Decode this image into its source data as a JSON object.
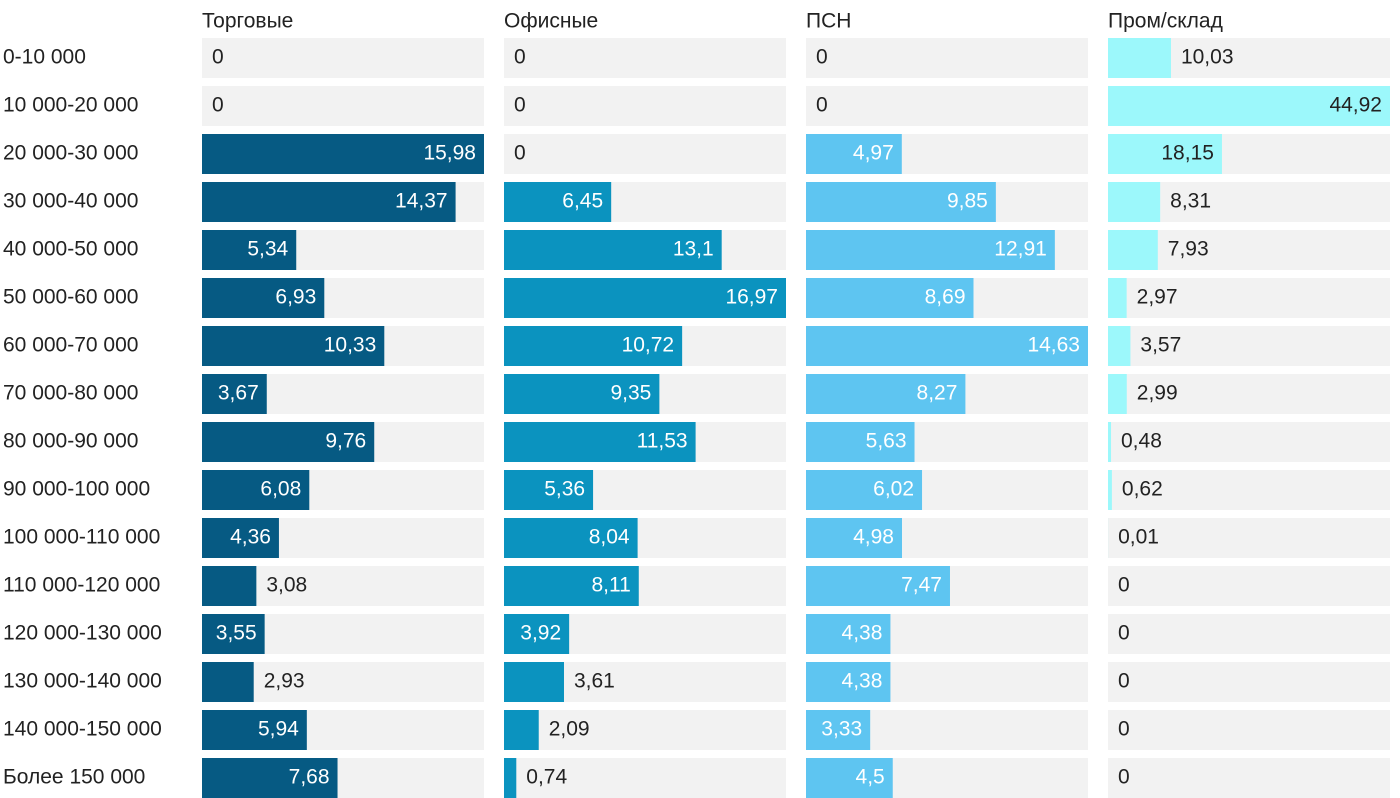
{
  "chart_data": {
    "type": "bar",
    "title": "",
    "categories": [
      "0-10 000",
      "10 000-20 000",
      "20 000-30 000",
      "30 000-40 000",
      "40 000-50 000",
      "50 000-60 000",
      "60 000-70 000",
      "70 000-80 000",
      "80 000-90 000",
      "90 000-100 000",
      "100 000-110 000",
      "110 000-120 000",
      "120 000-130 000",
      "130 000-140 000",
      "140 000-150 000",
      "Более 150 000"
    ],
    "series": [
      {
        "name": "Торговые",
        "color": "#065a83",
        "values": [
          0,
          0,
          15.98,
          14.37,
          5.34,
          6.93,
          10.33,
          3.67,
          9.76,
          6.08,
          4.36,
          3.08,
          3.55,
          2.93,
          5.94,
          7.68
        ],
        "labels": [
          "0",
          "0",
          "15,98",
          "14,37",
          "5,34",
          "6,93",
          "10,33",
          "3,67",
          "9,76",
          "6,08",
          "4,36",
          "3,08",
          "3,55",
          "2,93",
          "5,94",
          "7,68"
        ]
      },
      {
        "name": "Офисные",
        "color": "#0b93bf",
        "values": [
          0,
          0,
          0,
          6.45,
          13.1,
          16.97,
          10.72,
          9.35,
          11.53,
          5.36,
          8.04,
          8.11,
          3.92,
          3.61,
          2.09,
          0.74
        ],
        "labels": [
          "0",
          "0",
          "0",
          "6,45",
          "13,1",
          "16,97",
          "10,72",
          "9,35",
          "11,53",
          "5,36",
          "8,04",
          "8,11",
          "3,92",
          "3,61",
          "2,09",
          "0,74"
        ]
      },
      {
        "name": "ПСН",
        "color": "#5ec5f1",
        "values": [
          0,
          0,
          4.97,
          9.85,
          12.91,
          8.69,
          14.63,
          8.27,
          5.63,
          6.02,
          4.98,
          7.47,
          4.38,
          4.38,
          3.33,
          4.5
        ],
        "labels": [
          "0",
          "0",
          "4,97",
          "9,85",
          "12,91",
          "8,69",
          "14,63",
          "8,27",
          "5,63",
          "6,02",
          "4,98",
          "7,47",
          "4,38",
          "4,38",
          "3,33",
          "4,5"
        ]
      },
      {
        "name": "Пром/склад",
        "color": "#9cf8fb",
        "values": [
          10.03,
          44.92,
          18.15,
          8.31,
          7.93,
          2.97,
          3.57,
          2.99,
          0.48,
          0.62,
          0.01,
          0,
          0,
          0,
          0,
          0
        ],
        "labels": [
          "10,03",
          "44,92",
          "18,15",
          "8,31",
          "7,93",
          "2,97",
          "3,57",
          "2,99",
          "0,48",
          "0,62",
          "0,01",
          "0",
          "0",
          "0",
          "0",
          "0"
        ]
      }
    ],
    "background_color": "#f2f2f2",
    "legend": "column headers at top",
    "grid": false
  }
}
